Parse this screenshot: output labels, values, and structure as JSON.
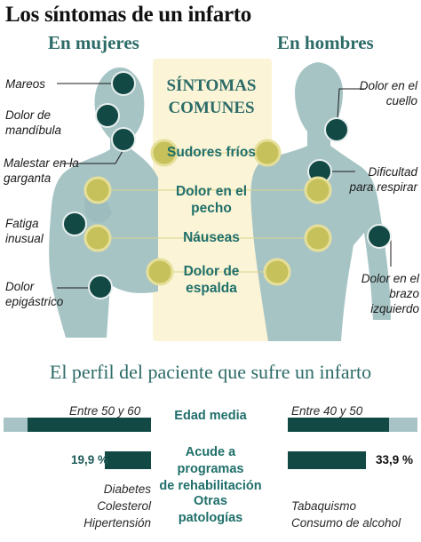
{
  "title": "Los síntomas de un infarto",
  "women": {
    "heading": "En mujeres",
    "symptoms": [
      "Mareos",
      "Dolor de mandíbula",
      "Malestar en la garganta",
      "Fatiga inusual",
      "Dolor epigástrico"
    ]
  },
  "men": {
    "heading": "En hombres",
    "symptoms": [
      "Dolor en el cuello",
      "Dificultad para respirar",
      "Dolor en el brazo izquierdo"
    ]
  },
  "common": {
    "heading_line1": "SÍNTOMAS",
    "heading_line2": "COMUNES",
    "items": [
      "Sudores fríos",
      "Dolor en el pecho",
      "Náuseas",
      "Dolor de espalda"
    ]
  },
  "profile": {
    "title": "El perfil del paciente que sufre un infarto",
    "age": {
      "label": "Edad media",
      "women_text": "Entre 50 y 60",
      "men_text": "Entre 40 y 50",
      "women_fill": 0.84,
      "men_fill": 0.78
    },
    "rehab": {
      "label_line1": "Acude a programas",
      "label_line2": "de rehabilitación",
      "women_value": "19,9 %",
      "men_value": "33,9 %",
      "women_fill": 0.36,
      "men_fill": 0.61
    },
    "other": {
      "label_line1": "Otras",
      "label_line2": "patologías",
      "women": [
        "Diabetes",
        "Colesterol",
        "Hipertensión"
      ],
      "men": [
        "Tabaquismo",
        "Consumo de alcohol"
      ]
    }
  },
  "colors": {
    "body_fill": "#a7c4c5",
    "dark_teal": "#124945",
    "common_bg": "#fbf4d7",
    "yellow_dot": "#c6c15a",
    "bar_light": "#a8c3c5",
    "text_teal": "#2c6b67"
  }
}
